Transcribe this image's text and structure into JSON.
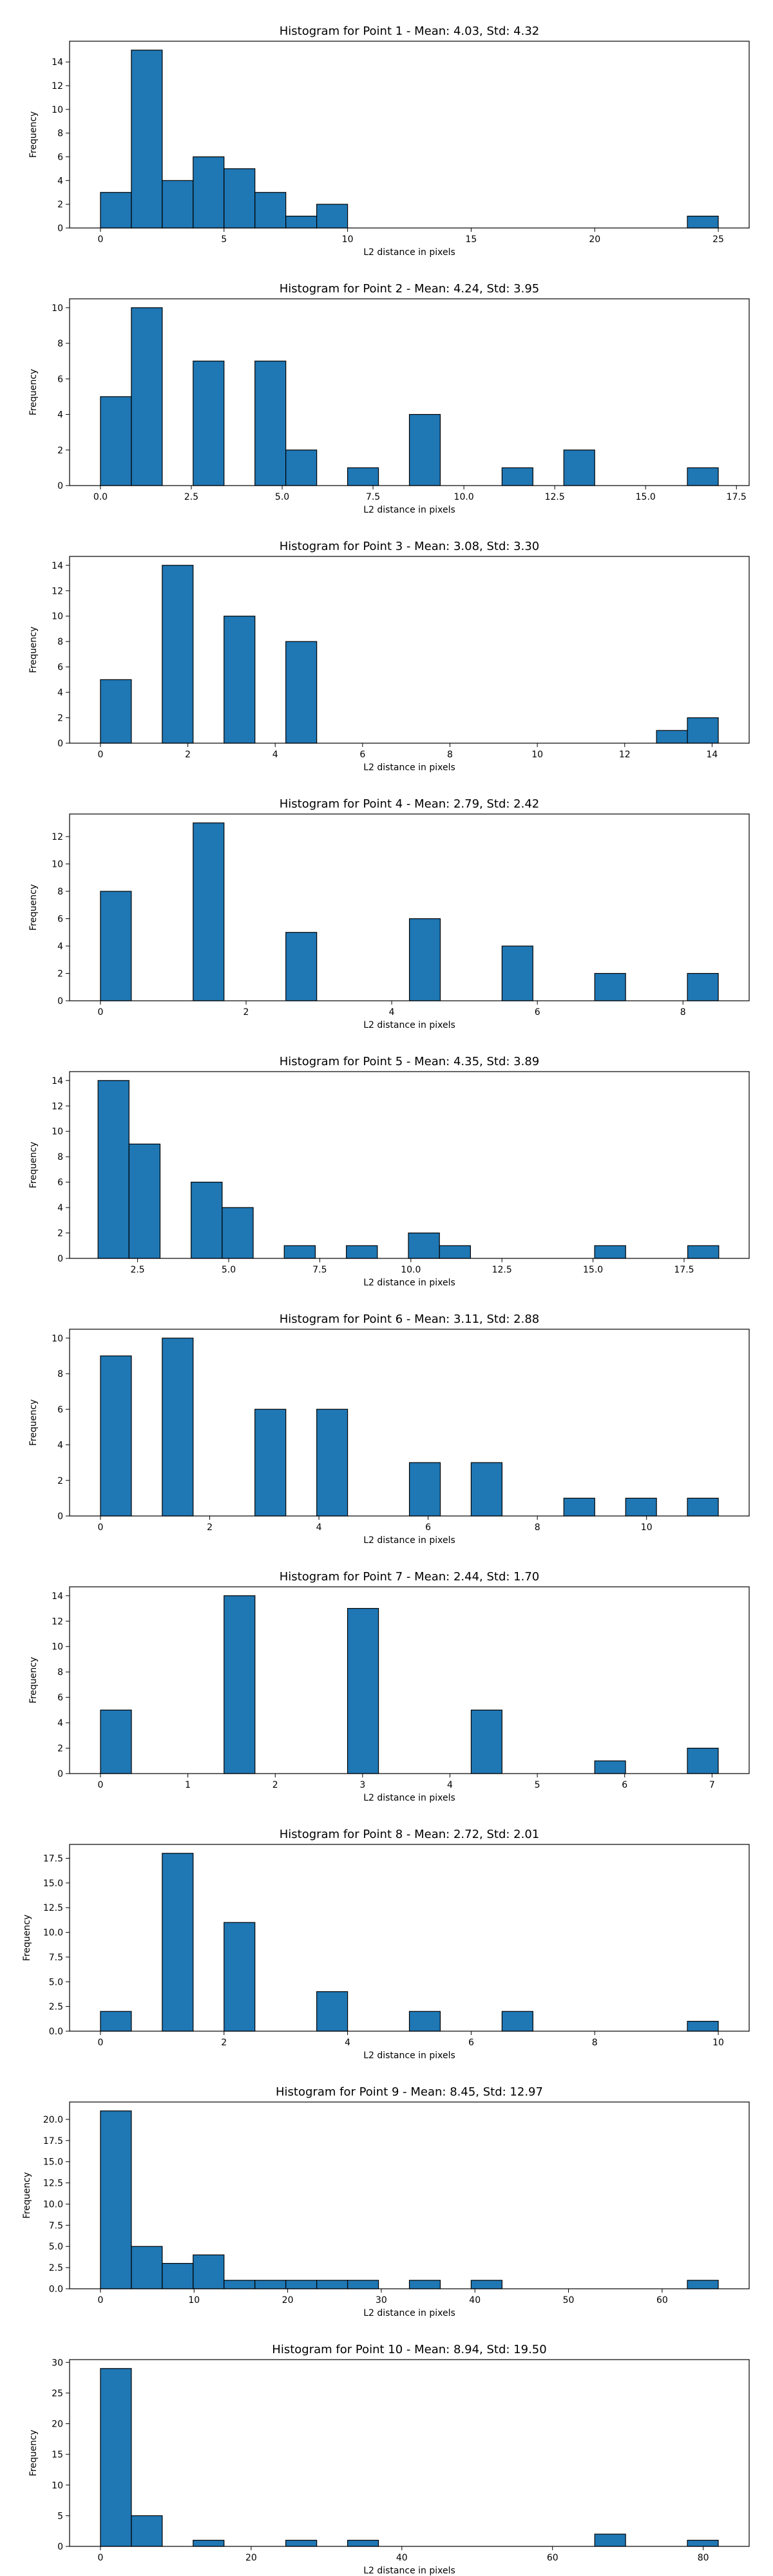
{
  "figure": {
    "bar_color": "#1f77b4",
    "edge_color": "#000000"
  },
  "chart_data": [
    {
      "type": "bar",
      "title": "Histogram for Point 1 - Mean: 4.03, Std: 4.32",
      "xlabel": "L2 distance in pixels",
      "ylabel": "Frequency",
      "xlim": [
        -1.25,
        26.25
      ],
      "ylim": [
        0,
        15.75
      ],
      "xticks": [
        0,
        5,
        10,
        15,
        20,
        25
      ],
      "xtick_labels": [
        "0",
        "5",
        "10",
        "15",
        "20",
        "25"
      ],
      "yticks": [
        0,
        2,
        4,
        6,
        8,
        10,
        12,
        14
      ],
      "ytick_labels": [
        "0",
        "2",
        "4",
        "6",
        "8",
        "10",
        "12",
        "14"
      ],
      "bins": [
        {
          "x0": 0.0,
          "x1": 1.25,
          "value": 3
        },
        {
          "x0": 1.25,
          "x1": 2.5,
          "value": 15
        },
        {
          "x0": 2.5,
          "x1": 3.75,
          "value": 4
        },
        {
          "x0": 3.75,
          "x1": 5.0,
          "value": 6
        },
        {
          "x0": 5.0,
          "x1": 6.25,
          "value": 5
        },
        {
          "x0": 6.25,
          "x1": 7.5,
          "value": 3
        },
        {
          "x0": 7.5,
          "x1": 8.75,
          "value": 1
        },
        {
          "x0": 8.75,
          "x1": 10.0,
          "value": 2
        },
        {
          "x0": 23.75,
          "x1": 25.0,
          "value": 1
        }
      ]
    },
    {
      "type": "bar",
      "title": "Histogram for Point 2 - Mean: 4.24, Std: 3.95",
      "xlabel": "L2 distance in pixels",
      "ylabel": "Frequency",
      "xlim": [
        -0.85,
        17.85
      ],
      "ylim": [
        0,
        10.5
      ],
      "xticks": [
        0,
        2.5,
        5,
        7.5,
        10,
        12.5,
        15,
        17.5
      ],
      "xtick_labels": [
        "0.0",
        "2.5",
        "5.0",
        "7.5",
        "10.0",
        "12.5",
        "15.0",
        "17.5"
      ],
      "yticks": [
        0,
        2,
        4,
        6,
        8,
        10
      ],
      "ytick_labels": [
        "0",
        "2",
        "4",
        "6",
        "8",
        "10"
      ],
      "bins": [
        {
          "x0": 0.0,
          "x1": 0.85,
          "value": 5
        },
        {
          "x0": 0.85,
          "x1": 1.7,
          "value": 10
        },
        {
          "x0": 2.55,
          "x1": 3.4,
          "value": 7
        },
        {
          "x0": 4.25,
          "x1": 5.1,
          "value": 7
        },
        {
          "x0": 5.1,
          "x1": 5.95,
          "value": 2
        },
        {
          "x0": 6.8,
          "x1": 7.65,
          "value": 1
        },
        {
          "x0": 8.5,
          "x1": 9.35,
          "value": 4
        },
        {
          "x0": 11.05,
          "x1": 11.9,
          "value": 1
        },
        {
          "x0": 12.75,
          "x1": 13.6,
          "value": 2
        },
        {
          "x0": 16.15,
          "x1": 17.0,
          "value": 1
        }
      ]
    },
    {
      "type": "bar",
      "title": "Histogram for Point 3 - Mean: 3.08, Std: 3.30",
      "xlabel": "L2 distance in pixels",
      "ylabel": "Frequency",
      "xlim": [
        -0.707,
        14.849
      ],
      "ylim": [
        0,
        14.7
      ],
      "xticks": [
        0,
        2,
        4,
        6,
        8,
        10,
        12,
        14
      ],
      "xtick_labels": [
        "0",
        "2",
        "4",
        "6",
        "8",
        "10",
        "12",
        "14"
      ],
      "yticks": [
        0,
        2,
        4,
        6,
        8,
        10,
        12,
        14
      ],
      "ytick_labels": [
        "0",
        "2",
        "4",
        "6",
        "8",
        "10",
        "12",
        "14"
      ],
      "bins": [
        {
          "x0": 0.0,
          "x1": 0.707,
          "value": 5
        },
        {
          "x0": 1.414,
          "x1": 2.121,
          "value": 14
        },
        {
          "x0": 2.828,
          "x1": 3.536,
          "value": 10
        },
        {
          "x0": 4.243,
          "x1": 4.95,
          "value": 8
        },
        {
          "x0": 12.728,
          "x1": 13.435,
          "value": 1
        },
        {
          "x0": 13.435,
          "x1": 14.142,
          "value": 2
        }
      ]
    },
    {
      "type": "bar",
      "title": "Histogram for Point 4 - Mean: 2.79, Std: 2.42",
      "xlabel": "L2 distance in pixels",
      "ylabel": "Frequency",
      "xlim": [
        -0.424,
        8.909
      ],
      "ylim": [
        0,
        13.65
      ],
      "xticks": [
        0,
        2,
        4,
        6,
        8
      ],
      "xtick_labels": [
        "0",
        "2",
        "4",
        "6",
        "8"
      ],
      "yticks": [
        0,
        2,
        4,
        6,
        8,
        10,
        12
      ],
      "ytick_labels": [
        "0",
        "2",
        "4",
        "6",
        "8",
        "10",
        "12"
      ],
      "bins": [
        {
          "x0": 0.0,
          "x1": 0.424,
          "value": 8
        },
        {
          "x0": 1.273,
          "x1": 1.697,
          "value": 13
        },
        {
          "x0": 2.546,
          "x1": 2.97,
          "value": 5
        },
        {
          "x0": 4.243,
          "x1": 4.667,
          "value": 6
        },
        {
          "x0": 5.515,
          "x1": 5.939,
          "value": 4
        },
        {
          "x0": 6.788,
          "x1": 7.212,
          "value": 2
        },
        {
          "x0": 8.061,
          "x1": 8.485,
          "value": 2
        }
      ]
    },
    {
      "type": "bar",
      "title": "Histogram for Point 5 - Mean: 4.35, Std: 3.89",
      "xlabel": "L2 distance in pixels",
      "ylabel": "Frequency",
      "xlim": [
        0.633,
        19.286
      ],
      "ylim": [
        0,
        14.7
      ],
      "xticks": [
        2.5,
        5,
        7.5,
        10,
        12.5,
        15,
        17.5
      ],
      "xtick_labels": [
        "2.5",
        "5.0",
        "7.5",
        "10.0",
        "12.5",
        "15.0",
        "17.5"
      ],
      "yticks": [
        0,
        2,
        4,
        6,
        8,
        10,
        12,
        14
      ],
      "ytick_labels": [
        "0",
        "2",
        "4",
        "6",
        "8",
        "10",
        "12",
        "14"
      ],
      "bins": [
        {
          "x0": 1.414,
          "x1": 2.265,
          "value": 14
        },
        {
          "x0": 2.265,
          "x1": 3.117,
          "value": 9
        },
        {
          "x0": 3.969,
          "x1": 4.821,
          "value": 6
        },
        {
          "x0": 4.821,
          "x1": 5.673,
          "value": 4
        },
        {
          "x0": 6.525,
          "x1": 7.377,
          "value": 1
        },
        {
          "x0": 8.229,
          "x1": 9.081,
          "value": 1
        },
        {
          "x0": 9.933,
          "x1": 10.785,
          "value": 2
        },
        {
          "x0": 10.785,
          "x1": 11.637,
          "value": 1
        },
        {
          "x0": 15.044,
          "x1": 15.896,
          "value": 1
        },
        {
          "x0": 17.6,
          "x1": 18.452,
          "value": 1
        }
      ]
    },
    {
      "type": "bar",
      "title": "Histogram for Point 6 - Mean: 3.11, Std: 2.88",
      "xlabel": "L2 distance in pixels",
      "ylabel": "Frequency",
      "xlim": [
        -0.566,
        11.879
      ],
      "ylim": [
        0,
        10.5
      ],
      "xticks": [
        0,
        2,
        4,
        6,
        8,
        10
      ],
      "xtick_labels": [
        "0",
        "2",
        "4",
        "6",
        "8",
        "10"
      ],
      "yticks": [
        0,
        2,
        4,
        6,
        8,
        10
      ],
      "ytick_labels": [
        "0",
        "2",
        "4",
        "6",
        "8",
        "10"
      ],
      "bins": [
        {
          "x0": 0.0,
          "x1": 0.566,
          "value": 9
        },
        {
          "x0": 1.131,
          "x1": 1.697,
          "value": 10
        },
        {
          "x0": 2.828,
          "x1": 3.394,
          "value": 6
        },
        {
          "x0": 3.96,
          "x1": 4.525,
          "value": 6
        },
        {
          "x0": 5.657,
          "x1": 6.223,
          "value": 3
        },
        {
          "x0": 6.788,
          "x1": 7.354,
          "value": 3
        },
        {
          "x0": 8.485,
          "x1": 9.051,
          "value": 1
        },
        {
          "x0": 9.617,
          "x1": 10.182,
          "value": 1
        },
        {
          "x0": 10.748,
          "x1": 11.314,
          "value": 1
        }
      ]
    },
    {
      "type": "bar",
      "title": "Histogram for Point 7 - Mean: 2.44, Std: 1.70",
      "xlabel": "L2 distance in pixels",
      "ylabel": "Frequency",
      "xlim": [
        -0.354,
        7.425
      ],
      "ylim": [
        0,
        14.7
      ],
      "xticks": [
        0,
        1,
        2,
        3,
        4,
        5,
        6,
        7
      ],
      "xtick_labels": [
        "0",
        "1",
        "2",
        "3",
        "4",
        "5",
        "6",
        "7"
      ],
      "yticks": [
        0,
        2,
        4,
        6,
        8,
        10,
        12,
        14
      ],
      "ytick_labels": [
        "0",
        "2",
        "4",
        "6",
        "8",
        "10",
        "12",
        "14"
      ],
      "bins": [
        {
          "x0": 0.0,
          "x1": 0.354,
          "value": 5
        },
        {
          "x0": 1.414,
          "x1": 1.768,
          "value": 14
        },
        {
          "x0": 2.828,
          "x1": 3.182,
          "value": 13
        },
        {
          "x0": 4.243,
          "x1": 4.596,
          "value": 5
        },
        {
          "x0": 5.657,
          "x1": 6.01,
          "value": 1
        },
        {
          "x0": 6.718,
          "x1": 7.071,
          "value": 2
        }
      ]
    },
    {
      "type": "bar",
      "title": "Histogram for Point 8 - Mean: 2.72, Std: 2.01",
      "xlabel": "L2 distance in pixels",
      "ylabel": "Frequency",
      "xlim": [
        -0.5,
        10.5
      ],
      "ylim": [
        0,
        18.9
      ],
      "xticks": [
        0,
        2,
        4,
        6,
        8,
        10
      ],
      "xtick_labels": [
        "0",
        "2",
        "4",
        "6",
        "8",
        "10"
      ],
      "yticks": [
        0,
        2.5,
        5,
        7.5,
        10,
        12.5,
        15,
        17.5
      ],
      "ytick_labels": [
        "0.0",
        "2.5",
        "5.0",
        "7.5",
        "10.0",
        "12.5",
        "15.0",
        "17.5"
      ],
      "bins": [
        {
          "x0": 0.0,
          "x1": 0.5,
          "value": 2
        },
        {
          "x0": 1.0,
          "x1": 1.5,
          "value": 18
        },
        {
          "x0": 2.0,
          "x1": 2.5,
          "value": 11
        },
        {
          "x0": 3.5,
          "x1": 4.0,
          "value": 4
        },
        {
          "x0": 5.0,
          "x1": 5.5,
          "value": 2
        },
        {
          "x0": 6.5,
          "x1": 7.0,
          "value": 2
        },
        {
          "x0": 9.5,
          "x1": 10.0,
          "value": 1
        }
      ]
    },
    {
      "type": "bar",
      "title": "Histogram for Point 9 - Mean: 8.45, Std: 12.97",
      "xlabel": "L2 distance in pixels",
      "ylabel": "Frequency",
      "xlim": [
        -3.3,
        69.3
      ],
      "ylim": [
        0,
        22.05
      ],
      "xticks": [
        0,
        10,
        20,
        30,
        40,
        50,
        60
      ],
      "xtick_labels": [
        "0",
        "10",
        "20",
        "30",
        "40",
        "50",
        "60"
      ],
      "yticks": [
        0,
        2.5,
        5,
        7.5,
        10,
        12.5,
        15,
        17.5,
        20
      ],
      "ytick_labels": [
        "0.0",
        "2.5",
        "5.0",
        "7.5",
        "10.0",
        "12.5",
        "15.0",
        "17.5",
        "20.0"
      ],
      "bins": [
        {
          "x0": 0.0,
          "x1": 3.3,
          "value": 21
        },
        {
          "x0": 3.3,
          "x1": 6.6,
          "value": 5
        },
        {
          "x0": 6.6,
          "x1": 9.9,
          "value": 3
        },
        {
          "x0": 9.9,
          "x1": 13.2,
          "value": 4
        },
        {
          "x0": 13.2,
          "x1": 16.5,
          "value": 1
        },
        {
          "x0": 16.5,
          "x1": 19.8,
          "value": 1
        },
        {
          "x0": 19.8,
          "x1": 23.1,
          "value": 1
        },
        {
          "x0": 23.1,
          "x1": 26.4,
          "value": 1
        },
        {
          "x0": 26.4,
          "x1": 29.7,
          "value": 1
        },
        {
          "x0": 33.0,
          "x1": 36.3,
          "value": 1
        },
        {
          "x0": 39.6,
          "x1": 42.9,
          "value": 1
        },
        {
          "x0": 62.7,
          "x1": 66.0,
          "value": 1
        }
      ]
    },
    {
      "type": "bar",
      "title": "Histogram for Point 10 - Mean: 8.94, Std: 19.50",
      "xlabel": "L2 distance in pixels",
      "ylabel": "Frequency",
      "xlim": [
        -4.1,
        86.1
      ],
      "ylim": [
        0,
        30.45
      ],
      "xticks": [
        0,
        20,
        40,
        60,
        80
      ],
      "xtick_labels": [
        "0",
        "20",
        "40",
        "60",
        "80"
      ],
      "yticks": [
        0,
        5,
        10,
        15,
        20,
        25,
        30
      ],
      "ytick_labels": [
        "0",
        "5",
        "10",
        "15",
        "20",
        "25",
        "30"
      ],
      "bins": [
        {
          "x0": 0.0,
          "x1": 4.1,
          "value": 29
        },
        {
          "x0": 4.1,
          "x1": 8.2,
          "value": 5
        },
        {
          "x0": 12.3,
          "x1": 16.4,
          "value": 1
        },
        {
          "x0": 24.6,
          "x1": 28.7,
          "value": 1
        },
        {
          "x0": 32.8,
          "x1": 36.9,
          "value": 1
        },
        {
          "x0": 65.6,
          "x1": 69.7,
          "value": 2
        },
        {
          "x0": 77.9,
          "x1": 82.0,
          "value": 1
        }
      ]
    }
  ]
}
